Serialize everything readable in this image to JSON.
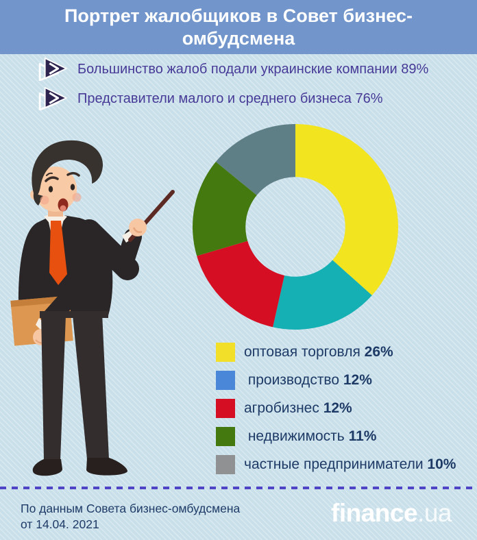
{
  "header": {
    "title": "Портрет жалобщиков в Совет бизнес-омбудсмена"
  },
  "facts": [
    {
      "text": "Большинство жалоб подали украинские компании 89%"
    },
    {
      "text": "Представители малого и среднего бизнеса 76%"
    }
  ],
  "chart_data": {
    "type": "pie",
    "style": "donut",
    "title": "Портрет жалобщиков в Совет бизнес-омбудсмена",
    "labels": [
      "оптовая торговля",
      "производство",
      "агробизнес",
      "недвижимость",
      "частные предприниматели"
    ],
    "values": [
      26,
      12,
      12,
      11,
      10
    ],
    "unit": "%",
    "slice_colors": [
      "#f2e41f",
      "#14b0b4",
      "#d60e24",
      "#44790f",
      "#5f7f86"
    ],
    "legend_colors": [
      "#f2df29",
      "#4a87d8",
      "#d60e24",
      "#44790f",
      "#8f9193"
    ],
    "hole_ratio": 0.485,
    "start_angle": "top",
    "direction": "clockwise",
    "legend_position": "below-right"
  },
  "legend": {
    "items": [
      {
        "label": "оптовая торговля ",
        "value": "26%"
      },
      {
        "label": " производство ",
        "value": "12%"
      },
      {
        "label": "агробизнес ",
        "value": "12%"
      },
      {
        "label": " недвижимость ",
        "value": "11%"
      },
      {
        "label": "частные предприниматели ",
        "value": "10%"
      }
    ]
  },
  "footer": {
    "source": "По данным Совета бизнес-омбудсмена от 14.04. 2021",
    "logo_bold": "finance",
    "logo_light": ".ua"
  },
  "accents": {
    "header_bg": "#7296cc",
    "background": "#c9e0ea",
    "fact_text": "#473a97",
    "body_text": "#1e3a66",
    "divider": "#4e44c5",
    "fact_icon_dark": "#2e2450"
  }
}
